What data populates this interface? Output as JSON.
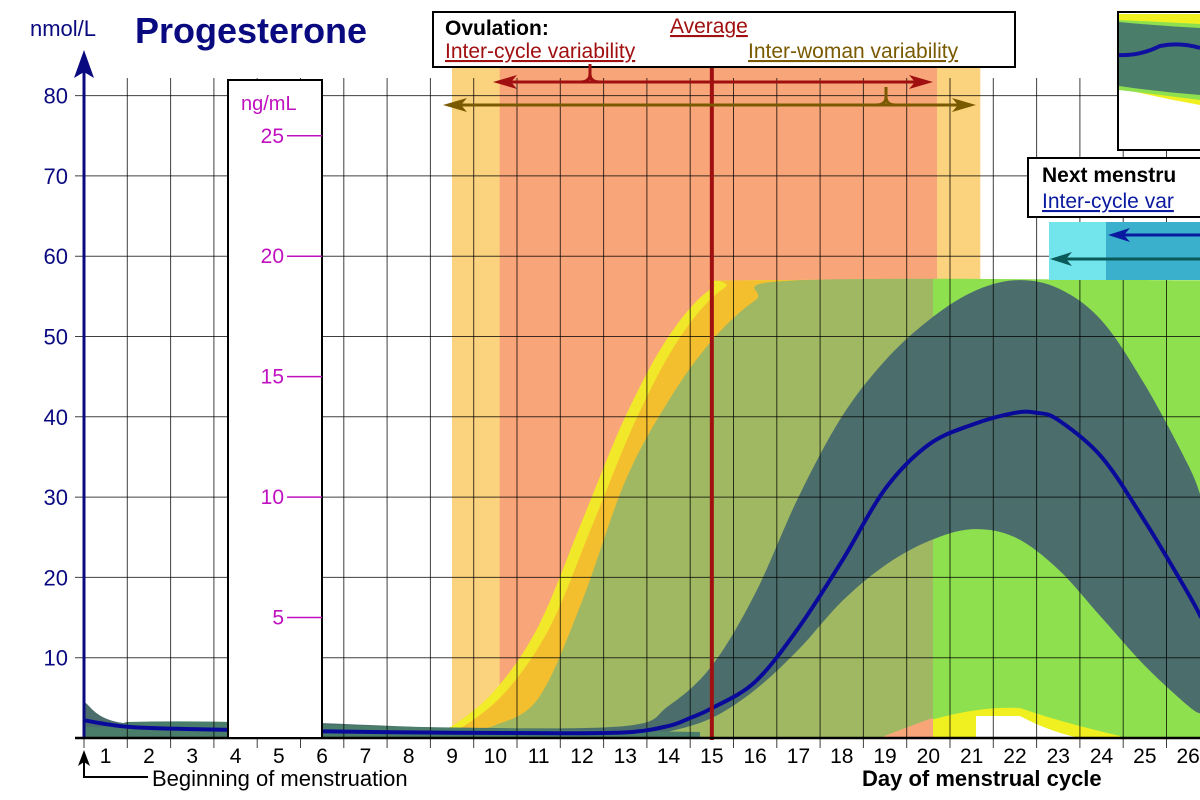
{
  "chart_data": {
    "type": "line",
    "title": "Progesterone",
    "ylabel": "nmol/L",
    "xlabel": "Day of menstrual cycle",
    "ylim": [
      0,
      80
    ],
    "xlim": [
      0.5,
      26.3
    ],
    "grid": true,
    "y_ticks": [
      10,
      20,
      30,
      40,
      50,
      60,
      70,
      80
    ],
    "x_ticks": [
      1,
      2,
      3,
      4,
      5,
      6,
      7,
      8,
      9,
      10,
      11,
      12,
      13,
      14,
      15,
      16,
      17,
      18,
      19,
      20,
      21,
      22,
      23,
      24,
      25,
      26
    ],
    "secondary_axis": {
      "label": "ng/mL",
      "ticks": [
        25,
        20,
        15,
        10,
        5
      ]
    },
    "annotation_start": "Beginning of menstruation",
    "series": [
      {
        "role": "mean",
        "color": "#0a0a9a",
        "x": [
          0.5,
          1.5,
          3,
          5,
          8,
          11,
          13,
          14,
          14.5,
          15,
          16,
          17,
          18,
          19,
          20,
          21,
          22,
          22.5,
          23,
          24,
          25,
          26,
          26.3
        ],
        "y": [
          2.2,
          1.4,
          1.1,
          0.9,
          0.7,
          0.6,
          0.7,
          1.5,
          2.5,
          3.7,
          7,
          13.7,
          22,
          31,
          36.5,
          39,
          40.5,
          40.5,
          39.6,
          35,
          27,
          18,
          15
        ]
      },
      {
        "role": "band-upper",
        "color": "#4b6e6c",
        "x": [
          0.5,
          1.5,
          5,
          9,
          13,
          14,
          15,
          16,
          17,
          18,
          19,
          20,
          21,
          22,
          23,
          24,
          25,
          26,
          26.3
        ],
        "y": [
          4.5,
          1.8,
          2,
          1.3,
          1.5,
          4,
          9,
          18,
          30,
          40,
          47,
          52,
          55.5,
          57,
          56,
          52,
          44,
          34,
          30
        ]
      },
      {
        "role": "band-lower",
        "color": "#4b6e6c",
        "x": [
          0.5,
          13,
          14,
          15,
          16,
          17,
          18,
          19,
          20,
          21,
          22,
          23,
          24,
          25,
          26,
          26.3
        ],
        "y": [
          0,
          0,
          0.8,
          2.5,
          6,
          11,
          17,
          21.5,
          24.5,
          26,
          25,
          21,
          15,
          9,
          4,
          3
        ]
      },
      {
        "role": "range-outer-upper",
        "color": "#f4bf2e",
        "x": [
          8.5,
          9,
          10,
          11,
          12,
          13,
          14,
          15,
          16,
          26.3
        ],
        "y": [
          1.0,
          1.5,
          6,
          14,
          27,
          40,
          50,
          56,
          57,
          57
        ]
      },
      {
        "role": "range-inner-upper",
        "color": "#8fe04f",
        "x": [
          9.5,
          10,
          11,
          12,
          13,
          14,
          15,
          16,
          17,
          26.3
        ],
        "y": [
          1.2,
          1.6,
          5,
          17,
          32,
          42,
          49.5,
          54.5,
          57,
          57
        ]
      }
    ],
    "ovulation": {
      "heading": "Ovulation:",
      "average_label": "Average",
      "average_day": 15,
      "inter_cycle_label": "Inter-cycle variability",
      "inter_cycle_range": [
        10.1,
        20.2
      ],
      "inter_woman_label": "Inter-woman variability",
      "inter_woman_range": [
        9.0,
        21.2
      ],
      "colors": {
        "average": "#a01010",
        "inter_cycle": "#f9a57a",
        "inter_woman": "#fbd27d",
        "inter_woman_text": "#7a5a00"
      }
    },
    "next_menstruation": {
      "heading": "Next menstru",
      "inter_cycle_label": "Inter-cycle var",
      "colors": {
        "light": "#72e4ec",
        "dark": "#3bb0cc",
        "arrow1": "#0a1aa0",
        "arrow2": "#0a5a5a"
      }
    }
  }
}
